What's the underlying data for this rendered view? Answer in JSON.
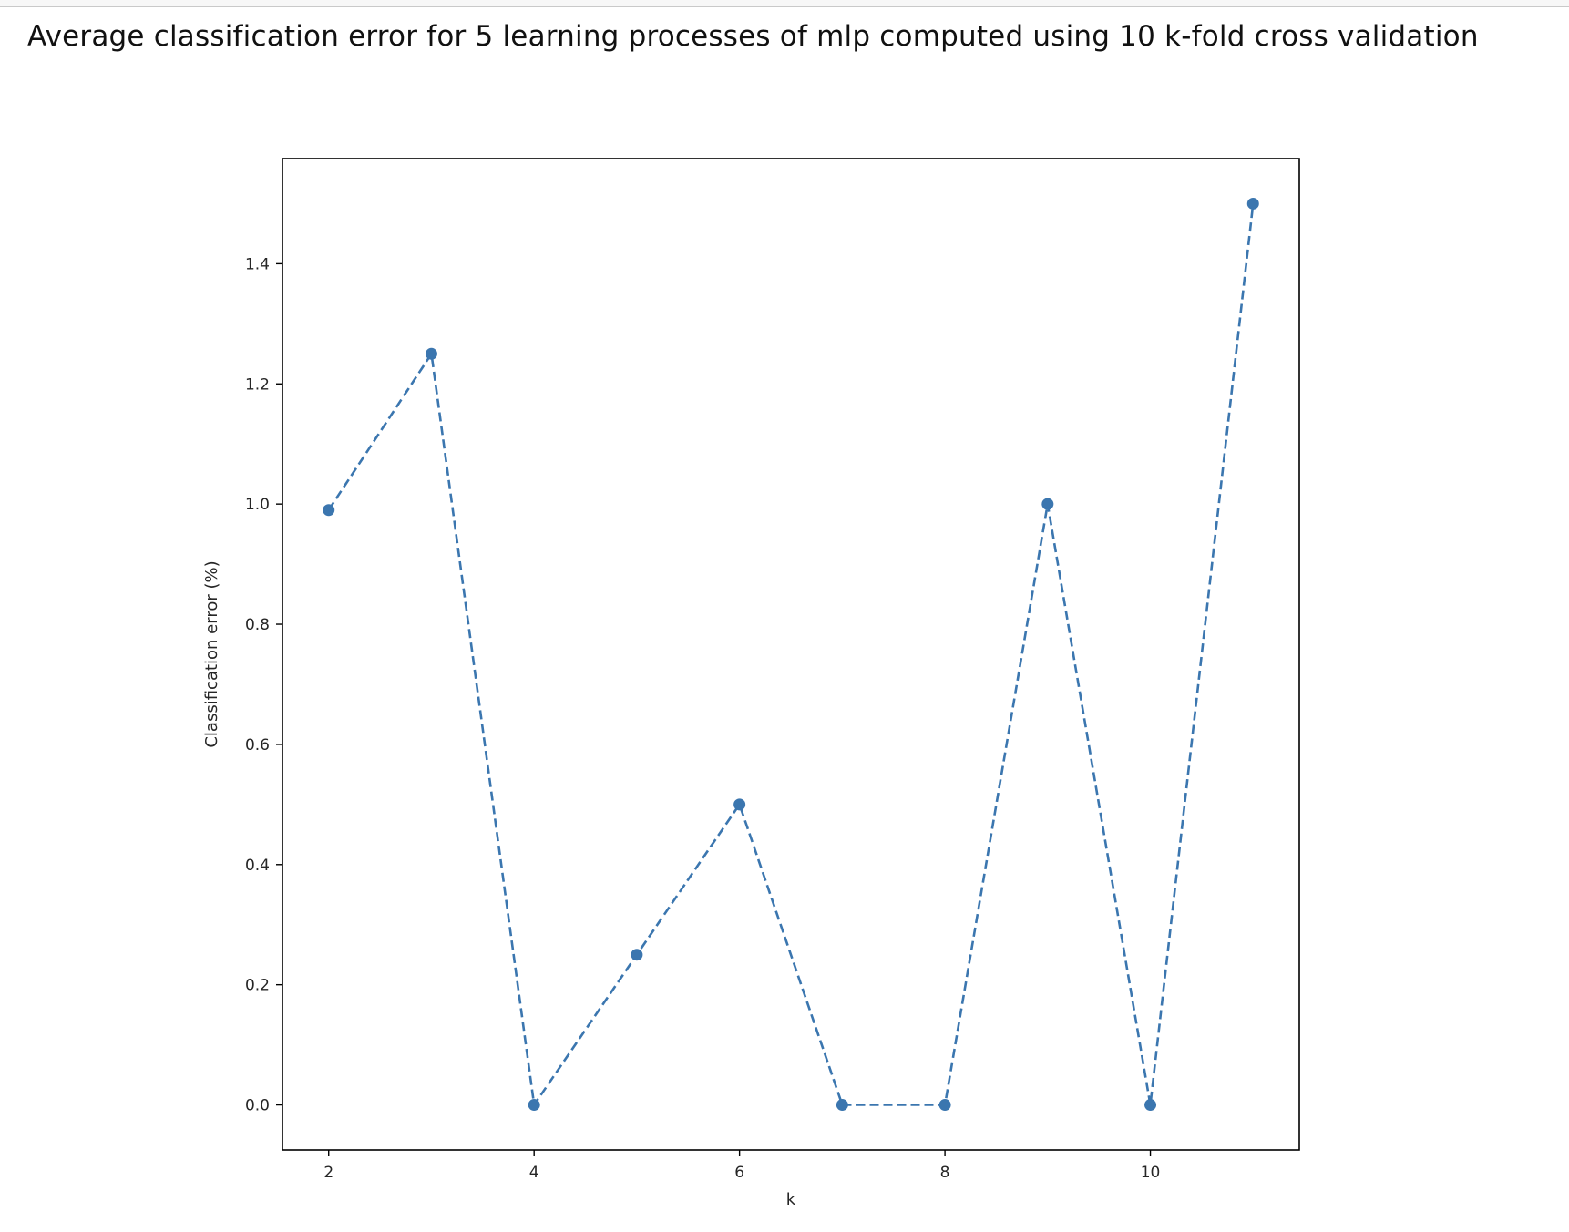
{
  "chart_data": {
    "type": "line",
    "title": "Average classification error for 5 learning processes of mlp computed using 10 k-fold cross validation",
    "xlabel": "k",
    "ylabel": "Classification error (%)",
    "x": [
      2,
      3,
      4,
      5,
      6,
      7,
      8,
      9,
      10,
      11
    ],
    "series": [
      {
        "values": [
          0.99,
          1.25,
          0.0,
          0.25,
          0.5,
          0.0,
          0.0,
          1.0,
          0.0,
          1.5
        ],
        "color": "#3b76af",
        "line_style": "dashed",
        "marker": "circle"
      }
    ],
    "xlim": [
      1.55,
      11.45
    ],
    "ylim": [
      -0.075,
      1.575
    ],
    "xticks": [
      "2",
      "4",
      "6",
      "8",
      "10"
    ],
    "yticks": [
      "0.0",
      "0.2",
      "0.4",
      "0.6",
      "0.8",
      "1.0",
      "1.2",
      "1.4"
    ],
    "grid": false,
    "legend": "none"
  }
}
